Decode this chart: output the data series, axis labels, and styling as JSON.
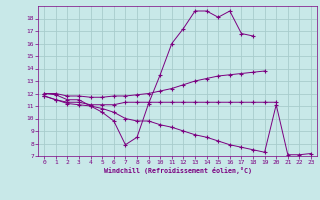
{
  "xlabel": "Windchill (Refroidissement éolien,°C)",
  "x_values": [
    0,
    1,
    2,
    3,
    4,
    5,
    6,
    7,
    8,
    9,
    10,
    11,
    12,
    13,
    14,
    15,
    16,
    17,
    18,
    19,
    20,
    21,
    22,
    23
  ],
  "curve1": [
    12.0,
    11.9,
    11.5,
    11.5,
    11.0,
    10.5,
    9.8,
    7.9,
    8.5,
    11.2,
    13.5,
    16.0,
    17.2,
    18.6,
    18.6,
    18.1,
    18.6,
    16.8,
    16.6,
    null,
    null,
    null,
    null,
    null
  ],
  "curve2": [
    12.0,
    12.0,
    11.8,
    11.8,
    11.7,
    11.7,
    11.8,
    11.8,
    11.9,
    12.0,
    12.2,
    12.4,
    12.7,
    13.0,
    13.2,
    13.4,
    13.5,
    13.6,
    13.7,
    13.8,
    null,
    null,
    null,
    null
  ],
  "curve3": [
    11.8,
    11.5,
    11.3,
    11.3,
    11.1,
    11.1,
    11.1,
    11.3,
    11.3,
    11.3,
    11.3,
    11.3,
    11.3,
    11.3,
    11.3,
    11.3,
    11.3,
    11.3,
    11.3,
    11.3,
    11.3,
    null,
    null,
    null
  ],
  "curve4": [
    11.8,
    11.5,
    11.2,
    11.1,
    11.0,
    10.8,
    10.5,
    10.0,
    9.8,
    9.8,
    9.5,
    9.3,
    9.0,
    8.7,
    8.5,
    8.2,
    7.9,
    7.7,
    7.5,
    7.3,
    11.1,
    7.1,
    7.1,
    7.2
  ],
  "line_color": "#7b0080",
  "bg_color": "#c8e8e8",
  "grid_color": "#a8cccc",
  "ylim": [
    7,
    19
  ],
  "yticks": [
    7,
    8,
    9,
    10,
    11,
    12,
    13,
    14,
    15,
    16,
    17,
    18
  ],
  "xlim": [
    -0.5,
    23.5
  ],
  "xticks": [
    0,
    1,
    2,
    3,
    4,
    5,
    6,
    7,
    8,
    9,
    10,
    11,
    12,
    13,
    14,
    15,
    16,
    17,
    18,
    19,
    20,
    21,
    22,
    23
  ]
}
